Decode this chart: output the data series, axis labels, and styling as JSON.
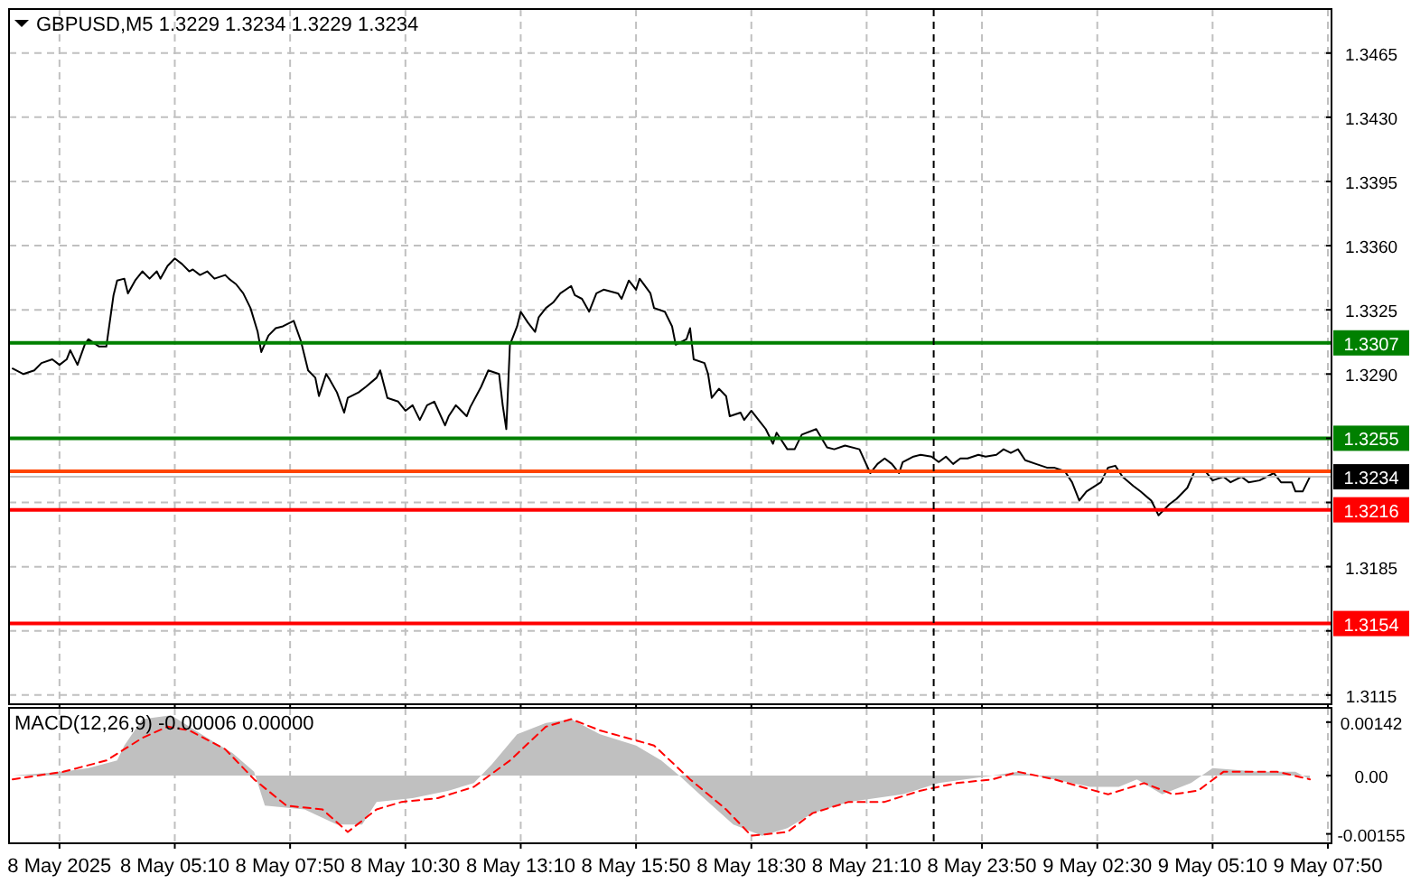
{
  "chart_data": [
    {
      "type": "line",
      "title": "GBPUSD,M5  1.3229 1.3234 1.3229 1.3234",
      "series": [
        {
          "color": "#000000",
          "x": [
            "2025-05-08T01:25",
            "2025-05-08T01:40",
            "2025-05-08T01:55",
            "2025-05-08T02:05",
            "2025-05-08T02:20",
            "2025-05-08T02:30",
            "2025-05-08T02:40",
            "2025-05-08T02:45",
            "2025-05-08T02:55",
            "2025-05-08T03:05",
            "2025-05-08T03:10",
            "2025-05-08T03:25",
            "2025-05-08T03:35",
            "2025-05-08T03:45",
            "2025-05-08T03:50",
            "2025-05-08T04:00",
            "2025-05-08T04:05",
            "2025-05-08T04:15",
            "2025-05-08T04:25",
            "2025-05-08T04:35",
            "2025-05-08T04:45",
            "2025-05-08T04:50",
            "2025-05-08T05:00",
            "2025-05-08T05:10",
            "2025-05-08T05:20",
            "2025-05-08T05:30",
            "2025-05-08T05:35",
            "2025-05-08T05:45",
            "2025-05-08T05:55",
            "2025-05-08T06:05",
            "2025-05-08T06:20",
            "2025-05-08T06:25",
            "2025-05-08T06:35",
            "2025-05-08T06:45",
            "2025-05-08T06:55",
            "2025-05-08T07:05",
            "2025-05-08T07:10",
            "2025-05-08T07:20",
            "2025-05-08T07:30",
            "2025-05-08T07:40",
            "2025-05-08T07:55",
            "2025-05-08T08:05",
            "2025-05-08T08:15",
            "2025-05-08T08:25",
            "2025-05-08T08:30",
            "2025-05-08T08:40",
            "2025-05-08T08:45",
            "2025-05-08T08:55",
            "2025-05-08T09:05",
            "2025-05-08T09:10",
            "2025-05-08T09:25",
            "2025-05-08T09:35",
            "2025-05-08T09:50",
            "2025-05-08T09:55",
            "2025-05-08T10:05",
            "2025-05-08T10:20",
            "2025-05-08T10:30",
            "2025-05-08T10:40",
            "2025-05-08T10:50",
            "2025-05-08T11:00",
            "2025-05-08T11:10",
            "2025-05-08T11:25",
            "2025-05-08T11:30",
            "2025-05-08T11:40",
            "2025-05-08T11:55",
            "2025-05-08T12:00",
            "2025-05-08T12:15",
            "2025-05-08T12:25",
            "2025-05-08T12:40",
            "2025-05-08T12:45",
            "2025-05-08T12:50",
            "2025-05-08T12:55",
            "2025-05-08T13:05",
            "2025-05-08T13:10",
            "2025-05-08T13:20",
            "2025-05-08T13:30",
            "2025-05-08T13:35",
            "2025-05-08T13:45",
            "2025-05-08T13:55",
            "2025-05-08T14:05",
            "2025-05-08T14:20",
            "2025-05-08T14:25",
            "2025-05-08T14:35",
            "2025-05-08T14:45",
            "2025-05-08T14:55",
            "2025-05-08T15:05",
            "2025-05-08T15:25",
            "2025-05-08T15:30",
            "2025-05-08T15:40",
            "2025-05-08T15:50",
            "2025-05-08T15:55",
            "2025-05-08T16:10",
            "2025-05-08T16:15",
            "2025-05-08T16:30",
            "2025-05-08T16:40",
            "2025-05-08T16:45",
            "2025-05-08T17:00",
            "2025-05-08T17:05",
            "2025-05-08T17:10",
            "2025-05-08T17:25",
            "2025-05-08T17:30",
            "2025-05-08T17:35",
            "2025-05-08T17:45",
            "2025-05-08T17:55",
            "2025-05-08T18:00",
            "2025-05-08T18:15",
            "2025-05-08T18:20",
            "2025-05-08T18:30",
            "2025-05-08T18:40",
            "2025-05-08T18:50",
            "2025-05-08T19:00",
            "2025-05-08T19:05",
            "2025-05-08T19:20",
            "2025-05-08T19:30",
            "2025-05-08T19:40",
            "2025-05-08T20:00",
            "2025-05-08T20:15",
            "2025-05-08T20:25",
            "2025-05-08T20:40",
            "2025-05-08T21:00",
            "2025-05-08T21:15",
            "2025-05-08T21:25",
            "2025-05-08T21:35",
            "2025-05-08T21:45",
            "2025-05-08T21:55",
            "2025-05-08T22:00",
            "2025-05-08T22:15",
            "2025-05-08T22:25",
            "2025-05-08T22:40",
            "2025-05-08T22:50",
            "2025-05-08T23:00",
            "2025-05-08T23:10",
            "2025-05-08T23:20",
            "2025-05-08T23:30",
            "2025-05-08T23:45",
            "2025-05-08T23:55",
            "2025-05-09T00:10",
            "2025-05-09T00:20",
            "2025-05-09T00:30",
            "2025-05-09T00:40",
            "2025-05-09T00:50",
            "2025-05-09T01:05",
            "2025-05-09T01:20",
            "2025-05-09T01:30",
            "2025-05-09T01:45",
            "2025-05-09T01:55",
            "2025-05-09T02:05",
            "2025-05-09T02:15",
            "2025-05-09T02:35",
            "2025-05-09T02:45",
            "2025-05-09T02:55",
            "2025-05-09T03:05",
            "2025-05-09T03:20",
            "2025-05-09T03:30",
            "2025-05-09T03:45",
            "2025-05-09T03:55",
            "2025-05-09T04:10",
            "2025-05-09T04:20",
            "2025-05-09T04:35",
            "2025-05-09T04:45",
            "2025-05-09T05:00",
            "2025-05-09T05:10",
            "2025-05-09T05:25",
            "2025-05-09T05:35",
            "2025-05-09T05:50",
            "2025-05-09T06:00",
            "2025-05-09T06:15",
            "2025-05-09T06:25",
            "2025-05-09T06:35",
            "2025-05-09T06:45",
            "2025-05-09T07:00",
            "2025-05-09T07:05",
            "2025-05-09T07:15",
            "2025-05-09T07:25"
          ],
          "values": [
            1.3293,
            1.329,
            1.3292,
            1.3296,
            1.3298,
            1.3295,
            1.3298,
            1.3303,
            1.3295,
            1.3306,
            1.3309,
            1.3305,
            1.3305,
            1.3333,
            1.3341,
            1.3342,
            1.3334,
            1.3341,
            1.3346,
            1.3342,
            1.3346,
            1.3342,
            1.3349,
            1.3353,
            1.335,
            1.3346,
            1.3347,
            1.3344,
            1.3346,
            1.3342,
            1.3344,
            1.3342,
            1.3339,
            1.3334,
            1.3326,
            1.3313,
            1.3302,
            1.3311,
            1.3315,
            1.3316,
            1.3319,
            1.3308,
            1.3292,
            1.3288,
            1.3278,
            1.329,
            1.3287,
            1.328,
            1.3269,
            1.3277,
            1.328,
            1.3283,
            1.3288,
            1.3292,
            1.3277,
            1.3275,
            1.327,
            1.3273,
            1.3265,
            1.3273,
            1.3275,
            1.3262,
            1.3267,
            1.3273,
            1.3267,
            1.3272,
            1.3283,
            1.3292,
            1.329,
            1.3273,
            1.326,
            1.3306,
            1.3316,
            1.3324,
            1.3318,
            1.3313,
            1.3321,
            1.3326,
            1.3329,
            1.3334,
            1.3338,
            1.3333,
            1.3331,
            1.3324,
            1.3334,
            1.3336,
            1.3334,
            1.3331,
            1.3341,
            1.3336,
            1.3342,
            1.3334,
            1.3326,
            1.3324,
            1.3316,
            1.3306,
            1.3309,
            1.3315,
            1.3298,
            1.3296,
            1.329,
            1.3277,
            1.3282,
            1.3278,
            1.3267,
            1.3269,
            1.3265,
            1.327,
            1.3265,
            1.326,
            1.3252,
            1.3258,
            1.3249,
            1.3249,
            1.3257,
            1.326,
            1.325,
            1.3249,
            1.3251,
            1.3249,
            1.3236,
            1.3241,
            1.3244,
            1.3241,
            1.3236,
            1.3242,
            1.3245,
            1.3246,
            1.3245,
            1.3242,
            1.3245,
            1.3241,
            1.3244,
            1.3244,
            1.3246,
            1.3245,
            1.3246,
            1.3249,
            1.3247,
            1.3249,
            1.3243,
            1.3241,
            1.3239,
            1.3239,
            1.3237,
            1.3231,
            1.3221,
            1.3226,
            1.3231,
            1.3239,
            1.324,
            1.3234,
            1.3229,
            1.3226,
            1.3221,
            1.3213,
            1.3219,
            1.3222,
            1.3228,
            1.3237,
            1.3237,
            1.3232,
            1.3234,
            1.3231,
            1.3234,
            1.3231,
            1.3232,
            1.3234,
            1.3236,
            1.3231,
            1.3231,
            1.3226,
            1.3226,
            1.3234
          ]
        }
      ],
      "xlim": [
        "2025-05-08T01:20",
        "2025-05-09T07:55"
      ],
      "ylim": [
        1.311,
        1.3489
      ],
      "xticks": [
        "2025-05-08T02:30",
        "2025-05-08T05:10",
        "2025-05-08T07:50",
        "2025-05-08T10:30",
        "2025-05-08T13:10",
        "2025-05-08T15:50",
        "2025-05-08T18:30",
        "2025-05-08T21:10",
        "2025-05-08T23:50",
        "2025-05-09T02:30",
        "2025-05-09T05:10",
        "2025-05-09T07:50"
      ],
      "yticks": [
        1.3465,
        {
          "value": 1.343,
          "label": "1.3430"
        },
        1.3395,
        {
          "value": 1.336,
          "label": "1.3360"
        },
        1.3325,
        {
          "value": 1.329,
          "label": "1.3290"
        },
        {
          "value": 1.3255,
          "label": null
        },
        {
          "value": 1.322,
          "label": null
        },
        1.3185,
        {
          "value": 1.315,
          "label": null
        },
        1.3115
      ],
      "tick_labels": "y",
      "grid": true,
      "ref_lines": [
        {
          "axis": "y",
          "value": 1.3307,
          "label": "1.3307",
          "color": "#008000"
        },
        {
          "axis": "y",
          "value": 1.3255,
          "label": "1.3255",
          "color": "#008000"
        },
        {
          "axis": "y",
          "value": 1.3237,
          "label": null,
          "color": "#ff4500"
        },
        {
          "axis": "y",
          "value": 1.3234,
          "label": "1.3234",
          "color": "#c0c0c0"
        },
        {
          "axis": "y",
          "value": 1.3216,
          "label": "1.3216",
          "color": "#ff0000"
        },
        {
          "axis": "y",
          "value": 1.3154,
          "label": "1.3154",
          "color": "#ff0000"
        },
        {
          "axis": "x",
          "value": "2025-05-08T22:43",
          "label": null,
          "color": "#000000",
          "line_style": "dashed"
        }
      ]
    },
    {
      "type": "area",
      "title": "MACD(12,26,9) -0.00006 0.00000",
      "series": [
        {
          "color": "#c0c0c0",
          "x": [
            "2025-05-08T01:25",
            "2025-05-08T02:35",
            "2025-05-08T03:10",
            "2025-05-08T03:50",
            "2025-05-08T04:00",
            "2025-05-08T04:25",
            "2025-05-08T05:05",
            "2025-05-08T05:30",
            "2025-05-08T05:55",
            "2025-05-08T06:30",
            "2025-05-08T07:00",
            "2025-05-08T07:15",
            "2025-05-08T08:10",
            "2025-05-08T08:55",
            "2025-05-08T09:30",
            "2025-05-08T09:50",
            "2025-05-08T10:40",
            "2025-05-08T11:30",
            "2025-05-08T12:05",
            "2025-05-08T12:30",
            "2025-05-08T13:05",
            "2025-05-08T13:45",
            "2025-05-08T14:20",
            "2025-05-08T15:00",
            "2025-05-08T15:50",
            "2025-05-08T16:25",
            "2025-05-08T16:50",
            "2025-05-08T17:30",
            "2025-05-08T18:05",
            "2025-05-08T18:45",
            "2025-05-08T19:20",
            "2025-05-08T19:55",
            "2025-05-08T20:45",
            "2025-05-08T22:00",
            "2025-05-08T22:50",
            "2025-05-09T00:05",
            "2025-05-09T00:40",
            "2025-05-09T01:30",
            "2025-05-09T02:20",
            "2025-05-09T03:00",
            "2025-05-09T03:25",
            "2025-05-09T04:00",
            "2025-05-09T04:40",
            "2025-05-09T05:10",
            "2025-05-09T06:15",
            "2025-05-09T07:05",
            "2025-05-09T07:25"
          ],
          "values": [
            0,
            0.0001,
            0.0002,
            0.0004,
            0.0008,
            0.0015,
            0.0016,
            0.0013,
            0.001,
            0.0006,
            0.0001,
            -0.0008,
            -0.0009,
            -0.0013,
            -0.0013,
            -0.0007,
            -0.0006,
            -0.0004,
            -0.0002,
            0.0003,
            0.0011,
            0.0014,
            0.0015,
            0.0011,
            0.0008,
            0.0004,
            0,
            -0.0007,
            -0.0013,
            -0.0016,
            -0.0014,
            -0.001,
            -0.0007,
            -0.0005,
            -0.0002,
            0,
            0.0001,
            -0.0001,
            -0.0003,
            -0.0003,
            -0.0001,
            -0.0005,
            -0.0002,
            0.0002,
            0.0001,
            0.0001,
            -0.0001
          ]
        },
        {
          "type": "line",
          "color": "#ff0000",
          "line_style": "dashed",
          "x": [
            "2025-05-08T01:25",
            "2025-05-08T02:35",
            "2025-05-08T03:35",
            "2025-05-08T04:25",
            "2025-05-08T05:00",
            "2025-05-08T05:30",
            "2025-05-08T06:20",
            "2025-05-08T07:00",
            "2025-05-08T07:45",
            "2025-05-08T08:35",
            "2025-05-08T09:10",
            "2025-05-08T09:50",
            "2025-05-08T10:25",
            "2025-05-08T11:15",
            "2025-05-08T12:05",
            "2025-05-08T12:55",
            "2025-05-08T13:45",
            "2025-05-08T14:20",
            "2025-05-08T15:00",
            "2025-05-08T16:15",
            "2025-05-08T17:05",
            "2025-05-08T17:55",
            "2025-05-08T18:30",
            "2025-05-08T19:20",
            "2025-05-08T19:55",
            "2025-05-08T20:45",
            "2025-05-08T21:35",
            "2025-05-08T22:25",
            "2025-05-08T23:15",
            "2025-05-09T00:05",
            "2025-05-09T00:40",
            "2025-05-09T01:30",
            "2025-05-09T02:45",
            "2025-05-09T03:35",
            "2025-05-09T04:15",
            "2025-05-09T04:50",
            "2025-05-09T05:25",
            "2025-05-09T06:40",
            "2025-05-09T07:25"
          ],
          "values": [
            -0.0001,
            0.0001,
            0.0004,
            0.001,
            0.0013,
            0.0012,
            0.0007,
            -0.0001,
            -0.0008,
            -0.0009,
            -0.0015,
            -0.0009,
            -0.0007,
            -0.0006,
            -0.0003,
            0.0004,
            0.0013,
            0.0015,
            0.0012,
            0.0008,
            -0.0001,
            -0.0009,
            -0.0016,
            -0.0015,
            -0.001,
            -0.0007,
            -0.0007,
            -0.0004,
            -0.0002,
            -0.0001,
            0.0001,
            -0.0001,
            -0.0005,
            -0.0002,
            -0.0005,
            -0.0004,
            0.0001,
            0.0001,
            -0.0001
          ]
        }
      ],
      "xlim": [
        "2025-05-08T01:20",
        "2025-05-09T07:55"
      ],
      "ylim": [
        -0.0018,
        0.0018
      ],
      "xticks": [
        {
          "value": "2025-05-08T02:30",
          "label": "8 May 2025"
        },
        {
          "value": "2025-05-08T05:10",
          "label": "8 May 05:10"
        },
        {
          "value": "2025-05-08T07:50",
          "label": "8 May 07:50"
        },
        {
          "value": "2025-05-08T10:30",
          "label": "8 May 10:30"
        },
        {
          "value": "2025-05-08T13:10",
          "label": "8 May 13:10"
        },
        {
          "value": "2025-05-08T15:50",
          "label": "8 May 15:50"
        },
        {
          "value": "2025-05-08T18:30",
          "label": "8 May 18:30"
        },
        {
          "value": "2025-05-08T21:10",
          "label": "8 May 21:10"
        },
        {
          "value": "2025-05-08T23:50",
          "label": "8 May 23:50"
        },
        {
          "value": "2025-05-09T02:30",
          "label": "9 May 02:30"
        },
        {
          "value": "2025-05-09T05:10",
          "label": "9 May 05:10"
        },
        {
          "value": "2025-05-09T07:50",
          "label": "9 May 07:50"
        }
      ],
      "yticks": [
        0.00142,
        {
          "value": 0,
          "label": "0.00"
        },
        -0.00155
      ],
      "grid": "x",
      "ref_lines": [
        {
          "axis": "x",
          "value": "2025-05-08T22:43",
          "label": null,
          "color": "#000000",
          "line_style": "dashed"
        }
      ]
    }
  ]
}
